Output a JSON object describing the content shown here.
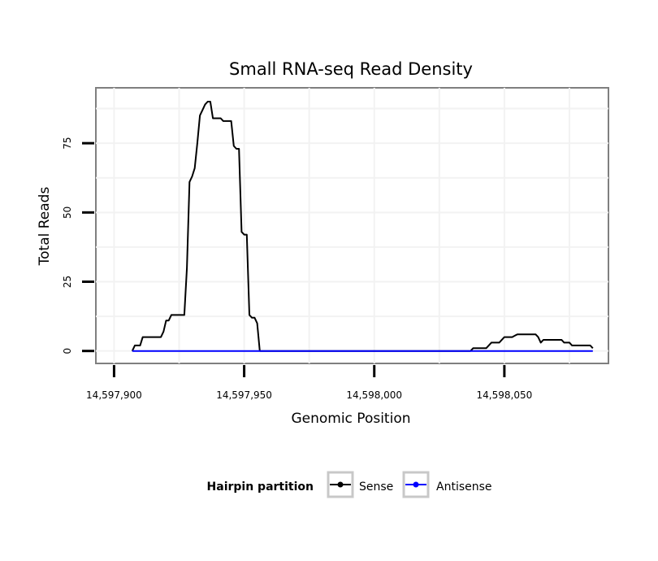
{
  "chart_data": {
    "type": "line",
    "title": "Small RNA-seq Read Density",
    "xlabel": "Genomic Position",
    "ylabel": "Total Reads",
    "xlim": [
      14597893,
      14598090
    ],
    "ylim": [
      -4.5,
      95
    ],
    "x_ticks": [
      14597900,
      14597950,
      14598000,
      14598050
    ],
    "x_tick_labels": [
      "14,597,900",
      "14,597,950",
      "14,598,000",
      "14,598,050"
    ],
    "y_ticks": [
      0,
      25,
      50,
      75
    ],
    "y_tick_labels": [
      "0",
      "25",
      "50",
      "75"
    ],
    "grid": true,
    "legend": {
      "title": "Hairpin partition",
      "position": "bottom"
    },
    "series": [
      {
        "name": "Sense",
        "color": "#000000",
        "points": [
          [
            14597907,
            0
          ],
          [
            14597908,
            2
          ],
          [
            14597910,
            2
          ],
          [
            14597911,
            5
          ],
          [
            14597918,
            5
          ],
          [
            14597919,
            7
          ],
          [
            14597920,
            11
          ],
          [
            14597921,
            11
          ],
          [
            14597922,
            13
          ],
          [
            14597927,
            13
          ],
          [
            14597928,
            30
          ],
          [
            14597929,
            61
          ],
          [
            14597930,
            63
          ],
          [
            14597931,
            66
          ],
          [
            14597932,
            75
          ],
          [
            14597933,
            85
          ],
          [
            14597934,
            87
          ],
          [
            14597935,
            89
          ],
          [
            14597936,
            90
          ],
          [
            14597937,
            90
          ],
          [
            14597938,
            84
          ],
          [
            14597941,
            84
          ],
          [
            14597942,
            83
          ],
          [
            14597945,
            83
          ],
          [
            14597946,
            74
          ],
          [
            14597947,
            73
          ],
          [
            14597948,
            73
          ],
          [
            14597949,
            43
          ],
          [
            14597950,
            42
          ],
          [
            14597951,
            42
          ],
          [
            14597952,
            13
          ],
          [
            14597953,
            12
          ],
          [
            14597954,
            12
          ],
          [
            14597955,
            10
          ],
          [
            14597956,
            0
          ],
          [
            14598037,
            0
          ],
          [
            14598038,
            1
          ],
          [
            14598043,
            1
          ],
          [
            14598045,
            3
          ],
          [
            14598048,
            3
          ],
          [
            14598050,
            5
          ],
          [
            14598053,
            5
          ],
          [
            14598055,
            6
          ],
          [
            14598062,
            6
          ],
          [
            14598063,
            5
          ],
          [
            14598064,
            3
          ],
          [
            14598065,
            4
          ],
          [
            14598072,
            4
          ],
          [
            14598073,
            3
          ],
          [
            14598075,
            3
          ],
          [
            14598076,
            2
          ],
          [
            14598083,
            2
          ],
          [
            14598084,
            1
          ]
        ]
      },
      {
        "name": "Antisense",
        "color": "#0000ff",
        "points": [
          [
            14597907,
            0
          ],
          [
            14598084,
            0
          ]
        ]
      }
    ]
  }
}
